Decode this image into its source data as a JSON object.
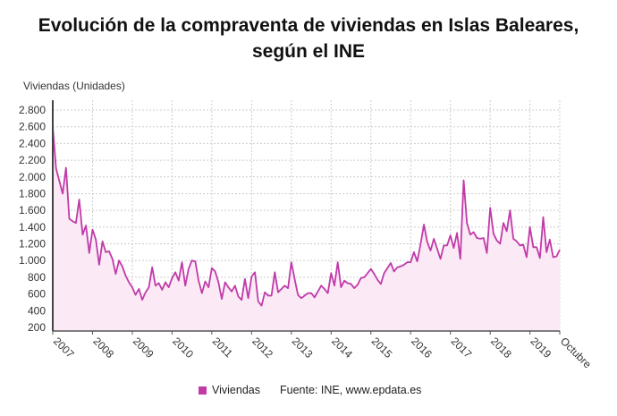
{
  "title_line1": "Evolución de la compraventa de viviendas en Islas Baleares,",
  "title_line2": "según el INE",
  "chart_data": {
    "type": "area",
    "title": "Evolución de la compraventa de viviendas en Islas Baleares, según el INE",
    "ylabel": "Viviendas (Unidades)",
    "xlabel": "",
    "ylim": [
      150,
      2900
    ],
    "yticks": [
      "200",
      "400",
      "600",
      "800",
      "1.000",
      "1.200",
      "1.400",
      "1.600",
      "1.800",
      "2.000",
      "2.200",
      "2.400",
      "2.600",
      "2.800"
    ],
    "ytick_values": [
      200,
      400,
      600,
      800,
      1000,
      1200,
      1400,
      1600,
      1800,
      2000,
      2200,
      2400,
      2600,
      2800
    ],
    "xticks": [
      "2007",
      "2008",
      "2009",
      "2010",
      "2011",
      "2012",
      "2013",
      "2014",
      "2015",
      "2016",
      "2017",
      "2018",
      "2019",
      "Octubre"
    ],
    "x_start": "2007-01",
    "x_end": "2019-10",
    "frequency": "monthly",
    "grid": true,
    "legend": "bottom",
    "series": [
      {
        "name": "Viviendas",
        "color": "#c03aa8",
        "fill": "#fbe9f6",
        "values": [
          2600,
          2100,
          1950,
          1800,
          2110,
          1500,
          1470,
          1450,
          1730,
          1310,
          1420,
          1090,
          1370,
          1250,
          950,
          1230,
          1100,
          1110,
          1020,
          840,
          1000,
          930,
          820,
          740,
          680,
          590,
          660,
          530,
          620,
          680,
          920,
          700,
          730,
          650,
          740,
          680,
          790,
          860,
          760,
          980,
          700,
          900,
          1000,
          990,
          760,
          610,
          750,
          680,
          910,
          870,
          740,
          540,
          740,
          680,
          630,
          700,
          570,
          530,
          780,
          550,
          810,
          860,
          510,
          460,
          620,
          580,
          580,
          860,
          620,
          660,
          700,
          670,
          980,
          780,
          590,
          550,
          580,
          610,
          610,
          560,
          630,
          700,
          660,
          610,
          850,
          700,
          980,
          680,
          760,
          730,
          720,
          670,
          710,
          790,
          800,
          850,
          900,
          840,
          770,
          720,
          850,
          910,
          970,
          870,
          920,
          930,
          950,
          980,
          980,
          1100,
          990,
          1200,
          1430,
          1220,
          1120,
          1260,
          1140,
          1020,
          1180,
          1180,
          1300,
          1150,
          1330,
          1020,
          1960,
          1450,
          1310,
          1340,
          1270,
          1260,
          1270,
          1090,
          1630,
          1320,
          1240,
          1200,
          1450,
          1350,
          1600,
          1260,
          1230,
          1180,
          1190,
          1040,
          1400,
          1160,
          1160,
          1030,
          1520,
          1100,
          1250,
          1040,
          1050,
          1130
        ]
      }
    ]
  },
  "legend_label": "Viviendas",
  "source": "Fuente: INE, www.epdata.es"
}
